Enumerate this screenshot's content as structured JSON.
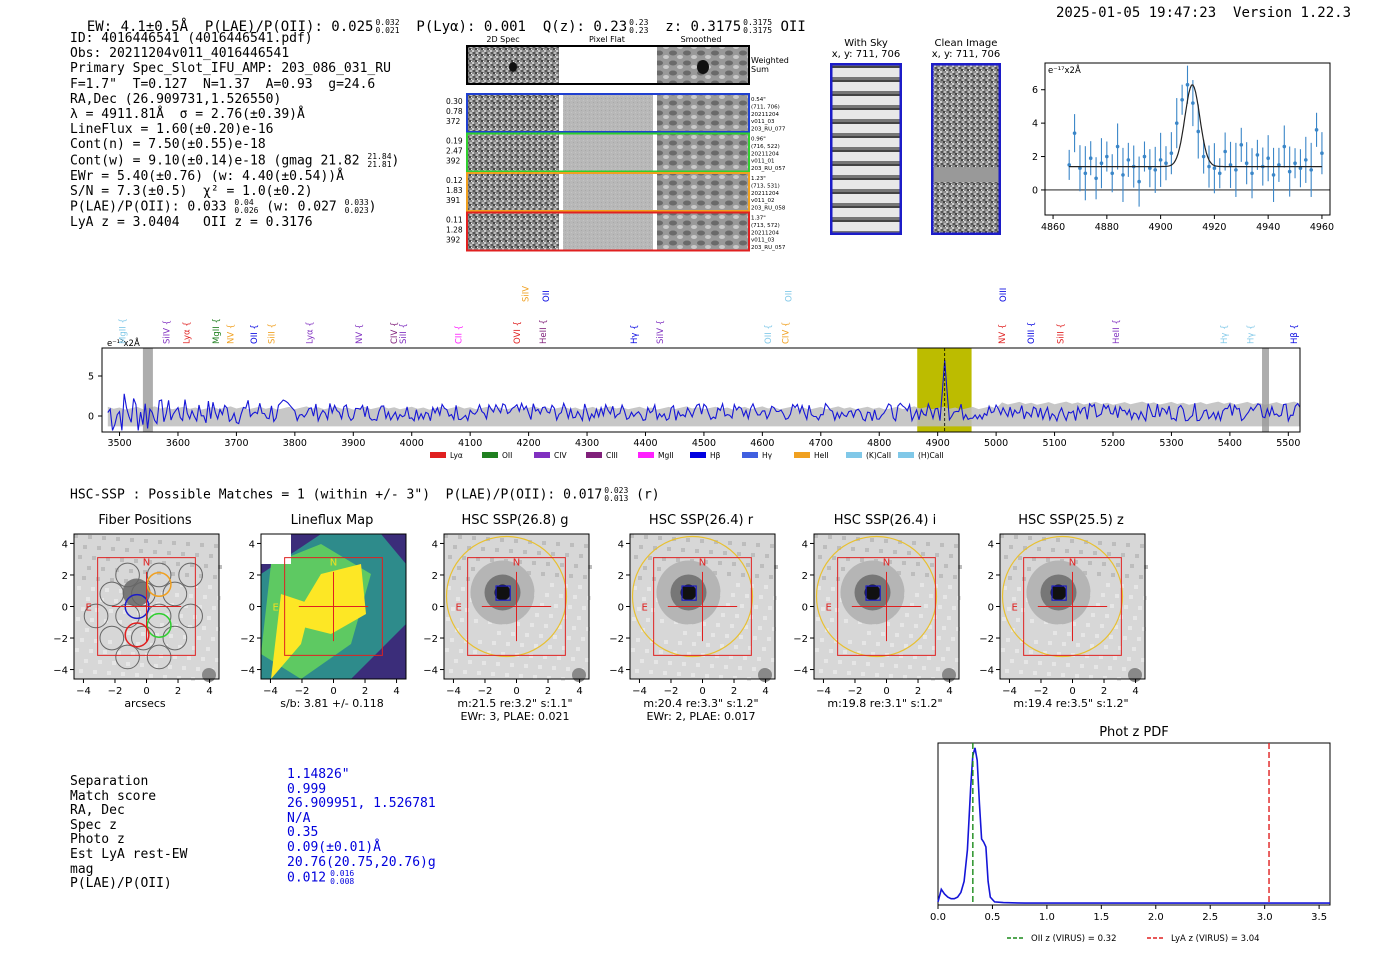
{
  "header": {
    "ew": "EW: 4.1±0.5Å",
    "plae_label": "P(LAE)/P(OII): 0.025",
    "plae_hi": "0.032",
    "plae_lo": "0.021",
    "plya": "P(Lyα): 0.001",
    "qz_label": "Q(z): 0.23",
    "qz_hi": "0.23",
    "qz_lo": "0.23",
    "z_label": "z: 0.3175",
    "z_hi": "0.3175",
    "z_lo": "0.3175",
    "z_line": "OII",
    "timestamp": "2025-01-05 19:47:23",
    "version": "Version 1.22.3"
  },
  "info": {
    "id": "ID: 4016446541 (4016446541.pdf)",
    "obs": "Obs: 20211204v011_4016446541",
    "primary": "Primary Spec_Slot_IFU_AMP: 203_086_031_RU",
    "params": "F=1.7\"  T=0.127  N=1.37  A=0.93  g=24.6",
    "radec": "RA,Dec (26.909731,1.526550)",
    "lambda": "λ = 4911.81Å  σ = 2.76(±0.39)Å",
    "lineflux": "LineFlux = 1.60(±0.20)e-16",
    "contn": "Cont(n) = 7.50(±0.55)e-18",
    "contw": "Cont(w) = 9.10(±0.14)e-18 (gmag 21.82",
    "contw_hi": "21.84",
    "contw_lo": "21.81",
    "ewr": "EWr = 5.40(±0.76) (w: 4.40(±0.54))Å",
    "sn": "S/N = 7.3(±0.5)  χ² = 1.0(±0.2)",
    "plae": "P(LAE)/P(OII): 0.033",
    "plae_hi": "0.04",
    "plae_lo": "0.026",
    "plae_w": "(w: 0.027",
    "plae_w_hi": "0.033",
    "plae_w_lo": "0.023",
    "lya_z": "LyA z = 3.0404   OII z = 0.3176"
  },
  "cutouts": {
    "col_2d": "2D Spec",
    "col_flat": "Pixel Flat",
    "col_smooth": "Smoothed",
    "weighted": "Weighted Sum",
    "rows": [
      {
        "left1": "0.30",
        "left2": "0.78",
        "left3": "372",
        "right": [
          "0.54\"",
          "(711, 706)",
          "20211204",
          "v011_03",
          "203_RU_077"
        ],
        "color": "#1f3fd0"
      },
      {
        "left1": "0.19",
        "left2": "2.47",
        "left3": "392",
        "right": [
          "0.96\"",
          "(716, 522)",
          "20211204",
          "v011_01",
          "203_RU_057"
        ],
        "color": "#2fcf2f"
      },
      {
        "left1": "0.12",
        "left2": "1.83",
        "left3": "391",
        "right": [
          "1.23\"",
          "(713, 531)",
          "20211204",
          "v011_02",
          "203_RU_058"
        ],
        "color": "#f0a020"
      },
      {
        "left1": "0.11",
        "left2": "1.28",
        "left3": "392",
        "right": [
          "1.37\"",
          "(713, 572)",
          "20211204",
          "v011_03",
          "203_RU_057"
        ],
        "color": "#e02020"
      }
    ],
    "with_sky_title": "With Sky",
    "with_sky_xy": "x, y: 711, 706",
    "clean_title": "Clean Image",
    "clean_xy": "x, y: 711, 706"
  },
  "chart_data": [
    {
      "type": "line",
      "title": "Zoom fit",
      "ylabel": "e⁻¹⁷x2Å",
      "xlim": [
        4857,
        4963
      ],
      "ylim": [
        -1.5,
        7.6
      ],
      "xticks": [
        4860,
        4880,
        4900,
        4920,
        4940,
        4960
      ],
      "yticks": [
        0,
        2,
        4,
        6
      ],
      "x": [
        4866,
        4868,
        4870,
        4872,
        4874,
        4876,
        4878,
        4880,
        4882,
        4884,
        4886,
        4888,
        4890,
        4892,
        4894,
        4896,
        4898,
        4900,
        4902,
        4904,
        4906,
        4908,
        4910,
        4912,
        4914,
        4916,
        4918,
        4920,
        4922,
        4924,
        4926,
        4928,
        4930,
        4932,
        4934,
        4936,
        4938,
        4940,
        4942,
        4944,
        4946,
        4948,
        4950,
        4952,
        4954,
        4956,
        4958,
        4960
      ],
      "values": [
        1.5,
        3.4,
        1.3,
        1.0,
        1.9,
        0.7,
        1.6,
        2.0,
        1.0,
        2.6,
        0.9,
        1.8,
        1.4,
        0.5,
        2.0,
        1.3,
        1.2,
        1.8,
        1.6,
        2.2,
        4.0,
        5.4,
        6.3,
        5.2,
        3.5,
        2.0,
        1.4,
        1.3,
        1.0,
        2.3,
        1.5,
        1.2,
        2.7,
        1.6,
        1.0,
        2.1,
        1.4,
        1.9,
        0.9,
        1.5,
        2.6,
        1.1,
        1.6,
        1.3,
        1.8,
        1.2,
        3.6,
        2.2
      ],
      "fit_center": 4911.8,
      "fit_sigma": 2.76,
      "fit_amp": 4.9,
      "fit_cont": 1.4
    },
    {
      "type": "line",
      "title": "Full spectrum",
      "ylabel": "e⁻¹⁷x2Å",
      "xlim": [
        3470,
        5520
      ],
      "ylim": [
        -2,
        8.5
      ],
      "xticks": [
        3500,
        3600,
        3700,
        3800,
        3900,
        4000,
        4100,
        4200,
        4300,
        4400,
        4500,
        4600,
        4700,
        4800,
        4900,
        5000,
        5100,
        5200,
        5300,
        5400,
        5500
      ],
      "yticks": [
        0,
        5
      ],
      "highlight_range": [
        4865,
        4958
      ],
      "emission_center": 4912,
      "line_markers_row1": [
        {
          "label": "MgII",
          "wave": 3505,
          "color": "#80c8e8"
        },
        {
          "label": "SiIV",
          "wave": 3580,
          "color": "#8030c0"
        },
        {
          "label": "Lyα",
          "wave": 3615,
          "color": "#e02020"
        },
        {
          "label": "MgII",
          "wave": 3665,
          "color": "#208020"
        },
        {
          "label": "NV",
          "wave": 3690,
          "color": "#f0a020"
        },
        {
          "label": "OII",
          "wave": 3730,
          "color": "#0000e0"
        },
        {
          "label": "SiII",
          "wave": 3760,
          "color": "#f0a020"
        },
        {
          "label": "Lyα",
          "wave": 3825,
          "color": "#8030c0"
        },
        {
          "label": "NV",
          "wave": 3910,
          "color": "#8030c0"
        },
        {
          "label": "CIV",
          "wave": 3970,
          "color": "#80207a"
        },
        {
          "label": "SiII",
          "wave": 3985,
          "color": "#8030c0"
        },
        {
          "label": "CII",
          "wave": 4080,
          "color": "#ff20ff"
        },
        {
          "label": "OVI",
          "wave": 4180,
          "color": "#e02020"
        },
        {
          "label": "HeII",
          "wave": 4225,
          "color": "#80207a"
        },
        {
          "label": "Hγ",
          "wave": 4380,
          "color": "#0000e0"
        },
        {
          "label": "SiIV",
          "wave": 4425,
          "color": "#8030c0"
        },
        {
          "label": "OII",
          "wave": 4610,
          "color": "#80c8e8"
        },
        {
          "label": "CIV",
          "wave": 4640,
          "color": "#f0a020"
        },
        {
          "label": "NV",
          "wave": 5010,
          "color": "#e02020"
        },
        {
          "label": "OIII",
          "wave": 5060,
          "color": "#0000e0"
        },
        {
          "label": "SiII",
          "wave": 5110,
          "color": "#e02020"
        },
        {
          "label": "HeII",
          "wave": 5205,
          "color": "#8030c0"
        },
        {
          "label": "Hγ",
          "wave": 5390,
          "color": "#80c8e8"
        },
        {
          "label": "Hγ",
          "wave": 5435,
          "color": "#80c8e8"
        },
        {
          "label": "Hβ",
          "wave": 5510,
          "color": "#0000e0"
        }
      ],
      "line_markers_row2": [
        {
          "label": "SiIV",
          "wave": 4195,
          "color": "#f0a020"
        },
        {
          "label": "OII",
          "wave": 4230,
          "color": "#0000e0"
        },
        {
          "label": "OII",
          "wave": 4645,
          "color": "#80c8e8"
        },
        {
          "label": "OIII",
          "wave": 5012,
          "color": "#0000e0"
        }
      ],
      "legend": [
        {
          "label": "Lyα",
          "color": "#e02020"
        },
        {
          "label": "OII",
          "color": "#208020"
        },
        {
          "label": "CIV",
          "color": "#8030c0"
        },
        {
          "label": "CIII",
          "color": "#80207a"
        },
        {
          "label": "MgII",
          "color": "#ff20ff"
        },
        {
          "label": "Hβ",
          "color": "#0000e0"
        },
        {
          "label": "Hγ",
          "color": "#4060e0"
        },
        {
          "label": "HeII",
          "color": "#f0a020"
        },
        {
          "label": "(K)CaII",
          "color": "#80c8e8"
        },
        {
          "label": "(H)CaII",
          "color": "#80c8e8"
        }
      ]
    },
    {
      "type": "line",
      "title": "Phot z PDF",
      "xlim": [
        0.0,
        3.6
      ],
      "ylim": [
        0,
        1.0
      ],
      "xticks": [
        0.0,
        0.5,
        1.0,
        1.5,
        2.0,
        2.5,
        3.0,
        3.5
      ],
      "x": [
        0.0,
        0.03,
        0.06,
        0.09,
        0.12,
        0.15,
        0.18,
        0.21,
        0.24,
        0.27,
        0.3,
        0.32,
        0.34,
        0.36,
        0.38,
        0.4,
        0.42,
        0.44,
        0.46,
        0.48,
        0.52,
        0.6,
        0.8,
        1.0,
        1.5,
        2.0,
        2.5,
        3.0,
        3.5,
        3.6
      ],
      "values": [
        0.02,
        0.1,
        0.07,
        0.05,
        0.04,
        0.04,
        0.05,
        0.08,
        0.15,
        0.35,
        0.75,
        0.95,
        1.0,
        0.92,
        0.65,
        0.42,
        0.4,
        0.37,
        0.15,
        0.05,
        0.02,
        0.015,
        0.012,
        0.012,
        0.012,
        0.012,
        0.012,
        0.012,
        0.012,
        0.012
      ],
      "oii_z": 0.32,
      "lya_z": 3.04,
      "legend_oii": "OII z (VIRUS) = 0.32",
      "legend_lya": "LyA z (VIRUS) = 3.04"
    }
  ],
  "hsc": {
    "summary": "HSC-SSP : Possible Matches = 1 (within +/- 3\")  P(LAE)/P(OII): 0.017",
    "summary_hi": "0.023",
    "summary_lo": "0.013",
    "summary_band": "(r)",
    "panels": [
      {
        "title": "Fiber Positions",
        "caption1": "arcsecs",
        "caption2": ""
      },
      {
        "title": "Lineflux Map",
        "caption1": "s/b: 3.81 +/- 0.118",
        "caption2": ""
      },
      {
        "title": "HSC SSP(26.8) g",
        "caption1": "m:21.5  re:3.2\"  s:1.1\"",
        "caption2": "EWr: 3, PLAE: 0.021"
      },
      {
        "title": "HSC SSP(26.4) r",
        "caption1": "m:20.4  re:3.3\"  s:1.2\"",
        "caption2": "EWr: 2, PLAE: 0.017"
      },
      {
        "title": "HSC SSP(26.4) i",
        "caption1": "m:19.8  re:3.1\"  s:1.2\"",
        "caption2": ""
      },
      {
        "title": "HSC SSP(25.5) z",
        "caption1": "m:19.4  re:3.5\"  s:1.2\"",
        "caption2": ""
      }
    ],
    "axis_ticks": [
      "4",
      "2",
      "0",
      "−2",
      "−4"
    ],
    "x_ticks": [
      "−4",
      "−2",
      "0",
      "2",
      "4"
    ],
    "n_label": "N",
    "e_label": "E"
  },
  "match": {
    "labels": [
      "Separation",
      "Match score",
      "RA, Dec",
      "Spec z",
      "Photo z",
      "Est LyA rest-EW",
      "mag",
      "P(LAE)/P(OII)"
    ],
    "values": [
      "1.14826\"",
      "0.999",
      "26.909951, 1.526781",
      "N/A",
      "0.35",
      "0.09(±0.01)Å",
      "20.76(20.75,20.76)g",
      "0.012"
    ],
    "plae_hi": "0.016",
    "plae_lo": "0.008"
  }
}
